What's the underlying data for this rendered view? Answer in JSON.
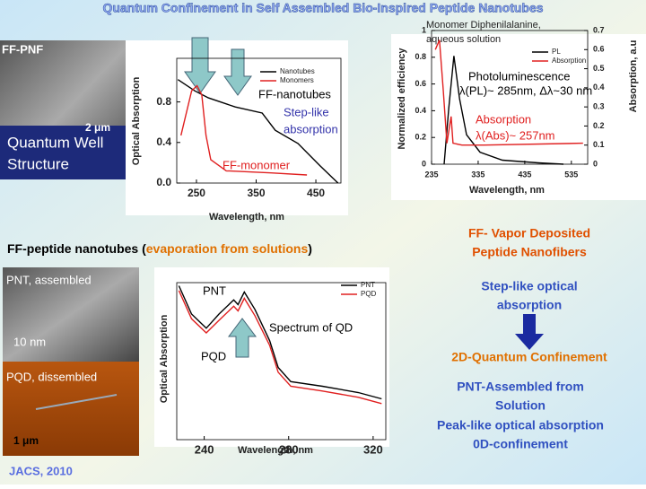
{
  "slide": {
    "title": "Quantum Confinement in Self Assembled Bio-Inspired Peptide Nanotubes",
    "ffpnf_label": "FF-PNF",
    "ffpnf_scale": "2 μm",
    "quantum_well": [
      "Quantum Well",
      "Structure"
    ],
    "pnt_heading": [
      "FF-peptide nanotubes (",
      "evaporation from solutions",
      ")"
    ],
    "pnt_label": "PNT, assembled",
    "pnt_scale": "10 nm",
    "pqd_label": "PQD, dissembled",
    "pqd_scale": "1 μm",
    "reference": "JACS, 2010",
    "right_heading": [
      "FF- Vapor Deposited",
      "Peptide Nanofibers"
    ],
    "step_like": [
      "Step-like optical",
      "absorption"
    ],
    "confinement_2d": "2D-Quantum Confinement",
    "pnt_text": [
      "PNT-Assembled from",
      "Solution",
      "Peak-like optical absorption",
      "0D-confinement"
    ]
  },
  "chart_data": [
    {
      "type": "line",
      "x_label": "Wavelength, nm",
      "y_label": "Optical Absorption",
      "xlim": [
        217,
        492
      ],
      "ylim": [
        0,
        1.23
      ],
      "xticks": [
        250,
        350,
        450
      ],
      "yticks": [
        {
          "value": 0,
          "label": "0.0"
        },
        0.4,
        0.8
      ],
      "legend": "upper right",
      "annotations": [
        {
          "text": "FF-nanotubes",
          "color": "#000000"
        },
        {
          "text": "Step-like",
          "color": "#3333aa"
        },
        {
          "text": "absorption",
          "color": "#3333aa"
        },
        {
          "text": "FF-monomer",
          "color": "#e02020"
        }
      ],
      "series": [
        {
          "name": "Nanotubes",
          "color": "#000000",
          "x": [
            219,
            247,
            270,
            315,
            360,
            382,
            420,
            457,
            487
          ],
          "values": [
            1.02,
            0.91,
            0.84,
            0.75,
            0.69,
            0.52,
            0.39,
            0.17,
            0.0
          ]
        },
        {
          "name": "Monomers",
          "color": "#e02020",
          "x": [
            224,
            235,
            242,
            251,
            259,
            266,
            274,
            300,
            375,
            435
          ],
          "values": [
            0.47,
            0.74,
            0.91,
            0.96,
            0.87,
            0.47,
            0.23,
            0.12,
            0.1,
            0.08
          ]
        }
      ]
    },
    {
      "type": "line",
      "title": [
        "Monomer Diphenilalanine,",
        "aqueous solution"
      ],
      "x_label": "Wavelength, nm",
      "y_label": "Normalized efficiency",
      "y2_label": "Absorption, a.u",
      "xlim": [
        235,
        570
      ],
      "ylim": [
        0,
        1
      ],
      "y2lim": [
        0,
        0.7
      ],
      "xticks": [
        235,
        335,
        435,
        535
      ],
      "yticks": [
        0,
        0.2,
        0.4,
        0.6,
        0.8,
        1
      ],
      "y2ticks": [
        0,
        0.1,
        0.2,
        0.3,
        0.4,
        0.5,
        0.6,
        0.7
      ],
      "legend": "upper center",
      "annotations": [
        {
          "text": "Photoluminescence",
          "color": "#000000"
        },
        {
          "text": "λ(PL)~ 285nm, Δλ~30 nm",
          "color": "#000000"
        },
        {
          "text": "Absorption",
          "color": "#e02020"
        },
        {
          "text": "λ(Abs)~ 257nm",
          "color": "#e02020"
        }
      ],
      "series": [
        {
          "name": "PL",
          "color": "#000000",
          "x": [
            262,
            272,
            283,
            295,
            310,
            339,
            387,
            464,
            518
          ],
          "values": [
            0,
            0.42,
            0.81,
            0.49,
            0.22,
            0.09,
            0.03,
            0.01,
            0
          ]
        },
        {
          "name": "Absorption",
          "color": "#e02020",
          "axis": "y2",
          "x": [
            243,
            252,
            260,
            268,
            277,
            281,
            300,
            348,
            560
          ],
          "values": [
            0.6,
            0.65,
            0.39,
            0.11,
            0.25,
            0.11,
            0.1,
            0.1,
            0.11
          ]
        }
      ]
    },
    {
      "type": "line",
      "x_label": "Wavelength, nm",
      "y_label": "Optical Absorption",
      "xlim": [
        227,
        326
      ],
      "ylim": [
        0,
        1
      ],
      "xticks": [
        240,
        280,
        320
      ],
      "legend": "upper right",
      "annotations": [
        {
          "text": "PNT",
          "color": "#000000"
        },
        {
          "text": "PQD",
          "color": "#000000"
        },
        {
          "text": "Spectrum of QD",
          "color": "#000000"
        }
      ],
      "series": [
        {
          "name": "PNT",
          "color": "#000000",
          "x": [
            228,
            234,
            241,
            247,
            254,
            256,
            259,
            264,
            271,
            275,
            281,
            296,
            313,
            324
          ],
          "values": [
            0.98,
            0.8,
            0.71,
            0.8,
            0.89,
            0.86,
            0.94,
            0.83,
            0.63,
            0.46,
            0.37,
            0.34,
            0.3,
            0.26
          ]
        },
        {
          "name": "PQD",
          "color": "#e02020",
          "x": [
            228,
            234,
            241,
            247,
            254,
            256,
            259,
            264,
            271,
            275,
            281,
            296,
            313,
            324
          ],
          "values": [
            0.95,
            0.77,
            0.68,
            0.76,
            0.85,
            0.82,
            0.9,
            0.79,
            0.6,
            0.43,
            0.34,
            0.31,
            0.27,
            0.23
          ]
        }
      ]
    }
  ]
}
